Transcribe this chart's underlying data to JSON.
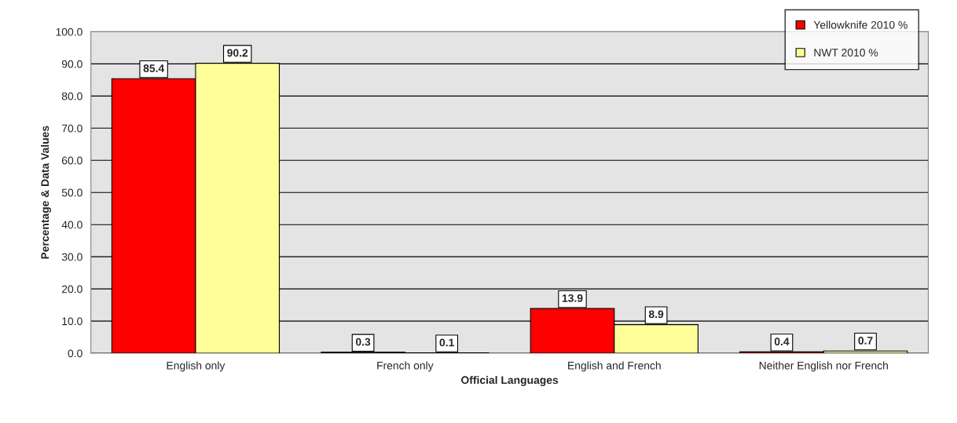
{
  "chart_data": {
    "type": "bar",
    "xlabel": "Official Languages",
    "ylabel": "Percentage & Data Values",
    "categories": [
      "English only",
      "French only",
      "English and French",
      "Neither English nor French"
    ],
    "series": [
      {
        "name": "Yellowknife 2010 %",
        "color": "#ff0000",
        "values": [
          85.4,
          0.3,
          13.9,
          0.4
        ]
      },
      {
        "name": "NWT 2010 %",
        "color": "#ffff99",
        "values": [
          90.2,
          0.1,
          8.9,
          0.7
        ]
      }
    ],
    "ylim": [
      0,
      100
    ],
    "yticks": [
      {
        "value": 0,
        "label": "0.0"
      },
      {
        "value": 10,
        "label": "10.0"
      },
      {
        "value": 20,
        "label": "20.0"
      },
      {
        "value": 30,
        "label": "30.0"
      },
      {
        "value": 40,
        "label": "40.0"
      },
      {
        "value": 50,
        "label": "50.0"
      },
      {
        "value": 60,
        "label": "60.0"
      },
      {
        "value": 70,
        "label": "70.0"
      },
      {
        "value": 80,
        "label": "80.0"
      },
      {
        "value": 90,
        "label": "90.0"
      },
      {
        "value": 100,
        "label": "100.0"
      }
    ],
    "grid": "y",
    "legend": "top right",
    "data_labels": true
  }
}
